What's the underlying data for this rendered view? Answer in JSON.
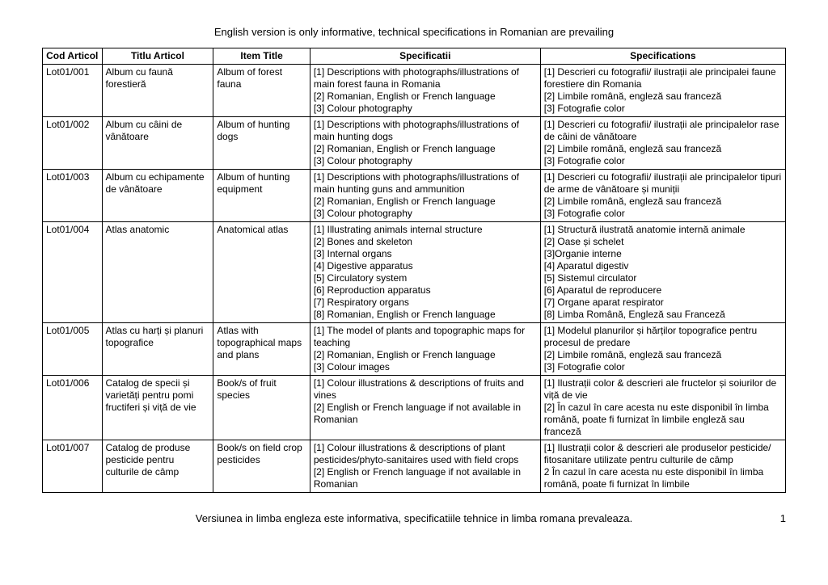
{
  "header": "English version is only informative, technical specifications in Romanian are prevailing",
  "footer": "Versiunea in limba engleza este informativa, specificatiile tehnice in limba romana prevaleaza.",
  "pageNumber": "1",
  "columns": [
    "Cod Articol",
    "Titlu Articol",
    "Item Title",
    "Specificatii",
    "Specifications"
  ],
  "rows": [
    {
      "cod": "Lot01/001",
      "titlu": "Album cu faună forestieră",
      "item": "Album of forest fauna",
      "specificatii": "[1] Descriptions with photographs/illustrations of main forest fauna in Romania\n[2] Romanian, English or French language\n[3] Colour photography",
      "specifications": "[1] Descrieri cu fotografii/ ilustrații ale principalei faune forestiere din Romania\n[2] Limbile română, engleză sau franceză\n[3] Fotografie color"
    },
    {
      "cod": "Lot01/002",
      "titlu": "Album cu câini de vânătoare",
      "item": "Album of hunting dogs",
      "specificatii": "[1] Descriptions with photographs/illustrations of main hunting dogs\n[2] Romanian, English or French language\n[3] Colour photography",
      "specifications": "[1] Descrieri cu fotografii/ ilustrații ale principalelor rase de câini de vânătoare\n[2] Limbile română, engleză sau franceză\n[3] Fotografie color"
    },
    {
      "cod": "Lot01/003",
      "titlu": "Album cu echipamente de vânătoare",
      "item": "Album of hunting equipment",
      "specificatii": "[1] Descriptions with photographs/illustrations of main hunting guns and ammunition\n[2] Romanian, English or French language\n[3] Colour photography",
      "specifications": "[1] Descrieri cu fotografii/ ilustrații ale principalelor tipuri de arme de vânătoare și muniții\n[2] Limbile română, engleză sau franceză\n[3] Fotografie color"
    },
    {
      "cod": "Lot01/004",
      "titlu": "Atlas anatomic",
      "item": "Anatomical atlas",
      "specificatii": "[1] Illustrating animals internal structure\n[2] Bones and skeleton\n[3] Internal organs\n[4] Digestive apparatus\n[5] Circulatory system\n[6] Reproduction apparatus\n[7] Respiratory organs\n[8] Romanian, English or French language",
      "specifications": "[1] Structură ilustrată anatomie internă animale\n[2] Oase și schelet\n[3]Organie interne\n[4] Aparatul digestiv\n[5] Sistemul circulator\n[6] Aparatul de reproducere\n[7] Organe aparat respirator\n[8] Limba Română, Engleză sau Franceză"
    },
    {
      "cod": "Lot01/005",
      "titlu": "Atlas cu harți și planuri topografice",
      "item": "Atlas with topographical maps and plans",
      "specificatii": "[1] The model of plants and topographic maps for teaching\n[2] Romanian, English or French language\n[3] Colour images",
      "specifications": "[1] Modelul planurilor și hărților topografice pentru procesul de predare\n[2] Limbile română, engleză sau franceză\n[3] Fotografie color"
    },
    {
      "cod": "Lot01/006",
      "titlu": "Catalog de specii și varietăți pentru pomi fructiferi și viță de vie",
      "item": "Book/s of fruit species",
      "specificatii": "[1] Colour illustrations & descriptions of fruits and vines\n[2] English or French language if not available in Romanian",
      "specifications": "[1] Ilustrații color & descrieri ale fructelor și soiurilor de  viță de vie\n[2] În cazul în care acesta nu este disponibil în limba română, poate fi furnizat în limbile engleză sau franceză"
    },
    {
      "cod": "Lot01/007",
      "titlu": "Catalog de produse pesticide pentru culturile de câmp",
      "item": "Book/s on field crop pesticides",
      "specificatii": "[1] Colour illustrations & descriptions of plant pesticides/phyto-sanitaires used with field crops\n[2] English or French language if not available in Romanian",
      "specifications": "[1] Ilustrații color & descrieri ale produselor pesticide/ fitosanitare utilizate pentru culturile de câmp\n2 În cazul în care acesta nu este disponibil în limba română, poate fi furnizat în limbile"
    }
  ]
}
